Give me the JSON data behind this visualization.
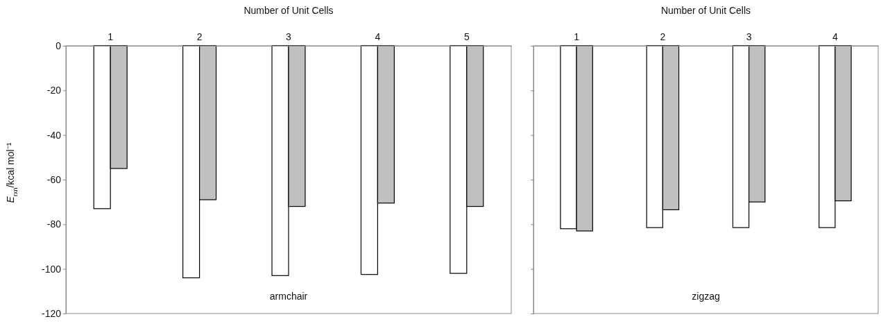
{
  "chart_data": [
    {
      "type": "bar",
      "xlabel": "Number of Unit Cells",
      "ylabel": "E$_{rxn}$/kcal mol⁻¹",
      "categories": [
        "1",
        "2",
        "3",
        "4",
        "5"
      ],
      "series": [
        {
          "color": "#ffffff",
          "values": [
            -73,
            -104,
            -103,
            -102.5,
            -102
          ]
        },
        {
          "color": "#c0c0c0",
          "values": [
            -55,
            -69,
            -72,
            -70.5,
            -72
          ]
        }
      ],
      "ylim": [
        -120,
        0
      ],
      "yticks": [
        -120,
        -100,
        -80,
        -60,
        -40,
        -20,
        0
      ],
      "annotations": [
        "armchair"
      ]
    },
    {
      "type": "bar",
      "xlabel": "Number of Unit Cells",
      "categories": [
        "1",
        "2",
        "3",
        "4"
      ],
      "series": [
        {
          "color": "#ffffff",
          "values": [
            -82,
            -81.5,
            -81.5,
            -81.5
          ]
        },
        {
          "color": "#c0c0c0",
          "values": [
            -83,
            -73.5,
            -70,
            -69.5
          ]
        }
      ],
      "ylim": [
        -120,
        0
      ],
      "yticks": [
        -120,
        -100,
        -80,
        -60,
        -40,
        -20,
        0
      ],
      "tick_labels": "x",
      "annotations": [
        "zigzag"
      ]
    }
  ]
}
